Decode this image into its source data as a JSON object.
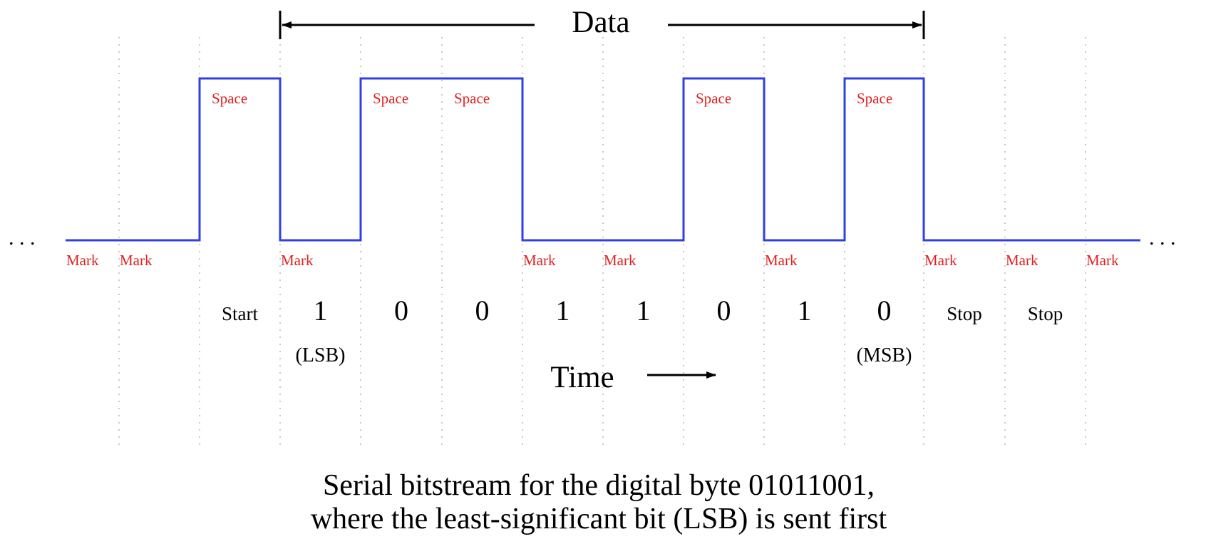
{
  "header": {
    "title": "Data"
  },
  "levels": {
    "space_slots": [
      2,
      4,
      5,
      8,
      10
    ],
    "mark_slots": [
      0,
      1,
      3,
      6,
      7,
      9,
      11,
      12,
      13
    ],
    "space_label": "Space",
    "mark_label": "Mark"
  },
  "waveform": {
    "levels_per_slot": [
      "mark",
      "mark",
      "space",
      "mark",
      "space",
      "space",
      "mark",
      "mark",
      "space",
      "mark",
      "space",
      "mark",
      "mark",
      "mark"
    ]
  },
  "bits": [
    {
      "slot": 2,
      "label": "Start",
      "sub": ""
    },
    {
      "slot": 3,
      "label": "1",
      "sub": "(LSB)"
    },
    {
      "slot": 4,
      "label": "0",
      "sub": ""
    },
    {
      "slot": 5,
      "label": "0",
      "sub": ""
    },
    {
      "slot": 6,
      "label": "1",
      "sub": ""
    },
    {
      "slot": 7,
      "label": "1",
      "sub": ""
    },
    {
      "slot": 8,
      "label": "0",
      "sub": ""
    },
    {
      "slot": 9,
      "label": "1",
      "sub": ""
    },
    {
      "slot": 10,
      "label": "0",
      "sub": "(MSB)"
    },
    {
      "slot": 11,
      "label": "Stop",
      "sub": ""
    },
    {
      "slot": 12,
      "label": "Stop",
      "sub": ""
    }
  ],
  "time": {
    "label": "Time"
  },
  "ellipsis": {
    "left": ". . .",
    "right": ". . ."
  },
  "caption": {
    "line1": "Serial bitstream for the digital byte 01011001,",
    "line2": "where the least-significant bit (LSB) is sent first"
  }
}
